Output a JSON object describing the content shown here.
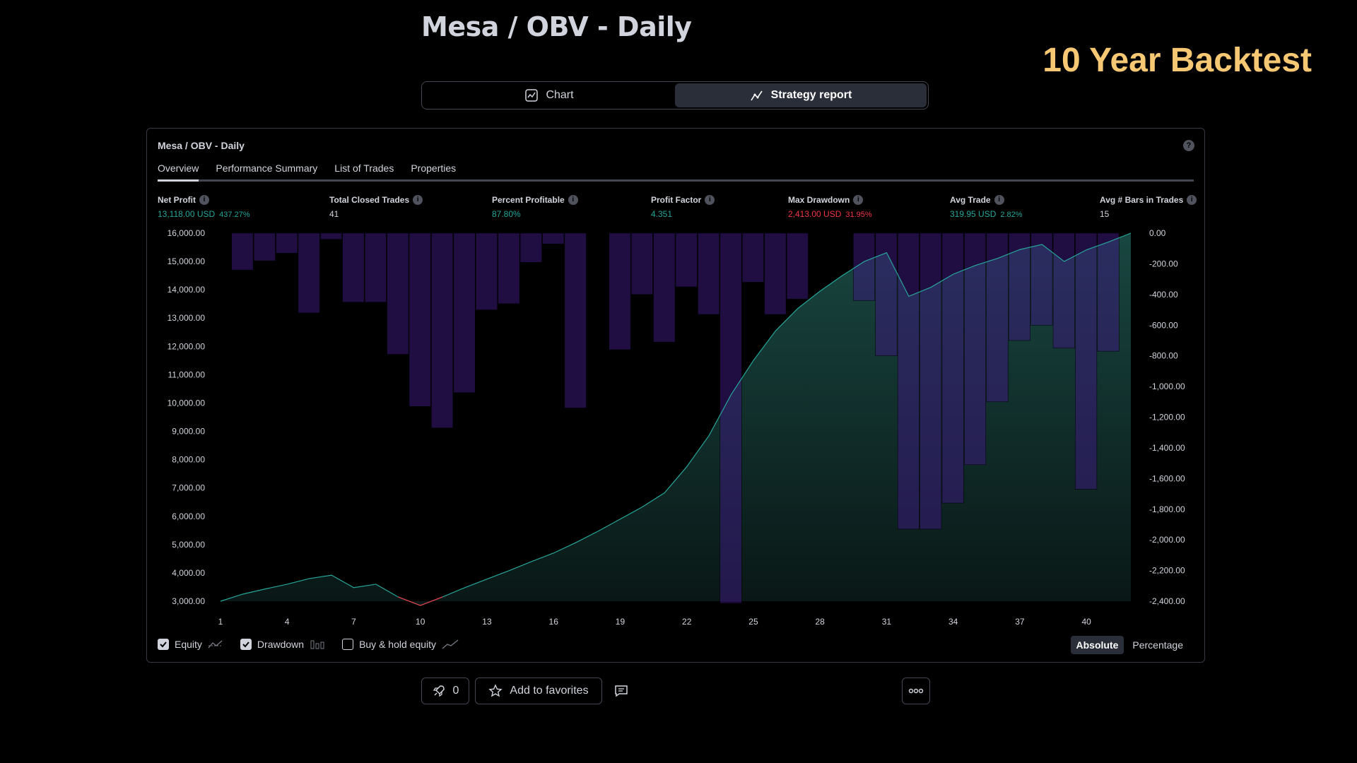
{
  "header": {
    "title": "Mesa / OBV - Daily",
    "overlay_text": "10 Year Backtest"
  },
  "switcher": {
    "chart_label": "Chart",
    "report_label": "Strategy report"
  },
  "panel": {
    "title": "Mesa / OBV - Daily",
    "help": "?",
    "tabs": [
      "Overview",
      "Performance Summary",
      "List of Trades",
      "Properties"
    ]
  },
  "metrics": [
    {
      "label": "Net Profit",
      "value": "13,118.00 USD",
      "pct": "437.27%",
      "color": "green"
    },
    {
      "label": "Total Closed Trades",
      "value": "41",
      "pct": "",
      "color": "white"
    },
    {
      "label": "Percent Profitable",
      "value": "87.80%",
      "pct": "",
      "color": "green"
    },
    {
      "label": "Profit Factor",
      "value": "4.351",
      "pct": "",
      "color": "green"
    },
    {
      "label": "Max Drawdown",
      "value": "2,413.00 USD",
      "pct": "31.95%",
      "color": "red"
    },
    {
      "label": "Avg Trade",
      "value": "319.95 USD",
      "pct": "2.82%",
      "color": "green"
    },
    {
      "label": "Avg # Bars in Trades",
      "value": "15",
      "pct": "",
      "color": "white"
    }
  ],
  "chart_data": {
    "type": "area",
    "left_axis_ticks": [
      "16,000.00",
      "15,000.00",
      "14,000.00",
      "13,000.00",
      "12,000.00",
      "11,000.00",
      "10,000.00",
      "9,000.00",
      "8,000.00",
      "7,000.00",
      "6,000.00",
      "5,000.00",
      "4,000.00",
      "3,000.00"
    ],
    "right_axis_ticks": [
      "0.00",
      "-200.00",
      "-400.00",
      "-600.00",
      "-800.00",
      "-1,000.00",
      "-1,200.00",
      "-1,400.00",
      "-1,600.00",
      "-1,800.00",
      "-2,000.00",
      "-2,200.00",
      "-2,400.00"
    ],
    "x_ticks": [
      "1",
      "4",
      "7",
      "10",
      "13",
      "16",
      "19",
      "22",
      "25",
      "28",
      "31",
      "34",
      "37",
      "40"
    ],
    "equity_ylim": [
      3000,
      16000
    ],
    "drawdown_ylim": [
      -2400,
      0
    ],
    "trades": [
      1,
      2,
      3,
      4,
      5,
      6,
      7,
      8,
      9,
      10,
      11,
      12,
      13,
      14,
      15,
      16,
      17,
      18,
      19,
      20,
      21,
      22,
      23,
      24,
      25,
      26,
      27,
      28,
      29,
      30,
      31,
      32,
      33,
      34,
      35,
      36,
      37,
      38,
      39,
      40,
      41,
      42
    ],
    "series": [
      {
        "name": "Equity",
        "values": [
          3000,
          3250,
          3430,
          3600,
          3800,
          3920,
          3480,
          3600,
          3150,
          2850,
          3150,
          3480,
          3780,
          4080,
          4400,
          4700,
          5070,
          5470,
          5900,
          6330,
          6830,
          7750,
          8850,
          10300,
          11500,
          12550,
          13340,
          13950,
          14500,
          15000,
          15310,
          13770,
          14090,
          14550,
          14860,
          15110,
          15420,
          15600,
          15000,
          15410,
          15690,
          16000
        ],
        "color": "#26a69a"
      },
      {
        "name": "Drawdown",
        "values": [
          0,
          -240,
          -180,
          -130,
          -520,
          -40,
          -450,
          -450,
          -790,
          -1130,
          -1270,
          -1040,
          -500,
          -460,
          -190,
          -70,
          -1140,
          0,
          -760,
          -400,
          -710,
          -350,
          -530,
          -2413,
          -320,
          -530,
          -430,
          0,
          0,
          -440,
          -800,
          -1930,
          -1930,
          -1760,
          -1510,
          -1100,
          -700,
          -600,
          -750,
          -1670,
          -770,
          0
        ],
        "color": "#2b0a55"
      }
    ]
  },
  "legend": {
    "equity": "Equity",
    "drawdown": "Drawdown",
    "buyhold": "Buy & hold equity",
    "absolute": "Absolute",
    "percentage": "Percentage"
  },
  "bottom": {
    "boost_count": "0",
    "favorites": "Add to favorites"
  }
}
